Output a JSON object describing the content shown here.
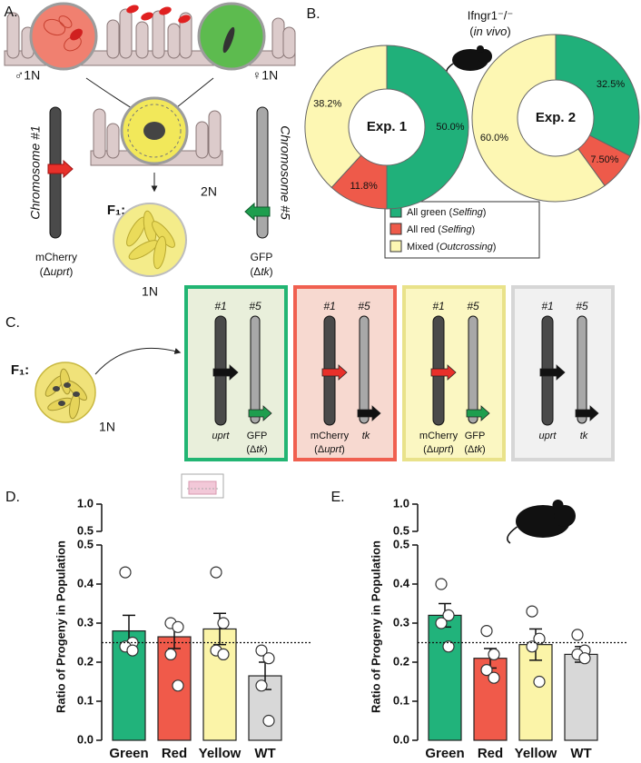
{
  "panel_a": {
    "label": "A.",
    "male": "♂1N",
    "female": "♀1N",
    "zygote": "2N",
    "chromosome_1": "Chromosome #1",
    "chromosome_5": "Chromosome #5",
    "marker_1": [
      "mCherry",
      "(Δuprt)"
    ],
    "marker_5": [
      "GFP",
      "(Δtk)"
    ],
    "f1": "F₁:",
    "f1_ploidy": "1N"
  },
  "panel_b": {
    "label": "B.",
    "title": "Ifngr1⁻/⁻",
    "subtitle": "(in vivo)",
    "legend": [
      {
        "name": "All green (Selfing)",
        "color": "#20b07a"
      },
      {
        "name": "All red (Selfing)",
        "color": "#ee5a4a"
      },
      {
        "name": "Mixed (Outcrossing)",
        "color": "#fdf7b3"
      }
    ]
  },
  "panel_c": {
    "label": "C.",
    "f1": "F₁:",
    "ploidy": "1N",
    "boxes": [
      {
        "border": "#22b573",
        "fill": "#e9efdb",
        "chromosomes": [
          "#1",
          "#5"
        ],
        "left_marker": "#111111",
        "right_marker": "#1e9e4e",
        "left_label": [
          "uprt"
        ],
        "right_label": [
          "GFP",
          "(Δtk)"
        ]
      },
      {
        "border": "#f06050",
        "fill": "#f7d9d0",
        "chromosomes": [
          "#1",
          "#5"
        ],
        "left_marker": "#e8302a",
        "right_marker": "#111111",
        "left_label": [
          "mCherry",
          "(Δuprt)"
        ],
        "right_label": [
          "tk"
        ]
      },
      {
        "border": "#e9e28a",
        "fill": "#fbf7c2",
        "chromosomes": [
          "#1",
          "#5"
        ],
        "left_marker": "#e8302a",
        "right_marker": "#1e9e4e",
        "left_label": [
          "mCherry",
          "(Δuprt)"
        ],
        "right_label": [
          "GFP",
          "(Δtk)"
        ]
      },
      {
        "border": "#d6d6d6",
        "fill": "#f1f1f1",
        "chromosomes": [
          "#1",
          "#5"
        ],
        "left_marker": "#111111",
        "right_marker": "#111111",
        "left_label": [
          "uprt"
        ],
        "right_label": [
          "tk"
        ]
      }
    ]
  },
  "chart_data": [
    {
      "type": "pie",
      "label": "Exp. 1",
      "values": [
        50.0,
        11.8,
        38.2
      ],
      "value_labels": [
        "50.0%",
        "11.8%",
        "38.2%"
      ]
    },
    {
      "type": "pie",
      "label": "Exp. 2",
      "values": [
        32.5,
        7.5,
        60.0
      ],
      "value_labels": [
        "32.5%",
        "7.50%",
        "60.0%"
      ]
    },
    {
      "type": "bar",
      "label": "D.",
      "y_label": "Ratio of Progeny in Population",
      "categories": [
        "Green",
        "Red",
        "Yellow",
        "WT"
      ],
      "colors": [
        "#21b37b",
        "#f05a4a",
        "#fbf4a8",
        "#d8d8d8"
      ],
      "values": [
        0.28,
        0.265,
        0.285,
        0.165
      ],
      "errors": [
        0.04,
        0.03,
        0.04,
        0.035
      ],
      "points": [
        [
          0.43,
          0.25,
          0.24,
          0.23
        ],
        [
          0.3,
          0.29,
          0.22,
          0.14
        ],
        [
          0.43,
          0.3,
          0.23,
          0.22
        ],
        [
          0.23,
          0.21,
          0.14,
          0.05
        ]
      ],
      "reference_line": 0.25,
      "ylim": [
        0,
        0.5
      ],
      "yticks": [
        {
          "value": 0,
          "label": "0.0"
        },
        0.1,
        0.2,
        0.3,
        0.4,
        0.5
      ],
      "ylim_top": [
        0.5,
        1
      ],
      "yticks_top": [
        0.5,
        {
          "value": 1,
          "label": "1.0"
        }
      ]
    },
    {
      "type": "bar",
      "label": "E.",
      "y_label": "Ratio of Progeny in Population",
      "categories": [
        "Green",
        "Red",
        "Yellow",
        "WT"
      ],
      "colors": [
        "#21b37b",
        "#f05a4a",
        "#fbf4a8",
        "#d8d8d8"
      ],
      "values": [
        0.32,
        0.21,
        0.245,
        0.22
      ],
      "errors": [
        0.03,
        0.025,
        0.04,
        0.02
      ],
      "points": [
        [
          0.4,
          0.32,
          0.3,
          0.24
        ],
        [
          0.28,
          0.22,
          0.18,
          0.16
        ],
        [
          0.33,
          0.26,
          0.24,
          0.15
        ],
        [
          0.27,
          0.23,
          0.22,
          0.21
        ]
      ],
      "reference_line": 0.25,
      "ylim": [
        0,
        0.5
      ],
      "yticks": [
        {
          "value": 0,
          "label": "0.0"
        },
        0.1,
        0.2,
        0.3,
        0.4,
        0.5
      ],
      "ylim_top": [
        0.5,
        1
      ],
      "yticks_top": [
        0.5,
        {
          "value": 1,
          "label": "1.0"
        }
      ]
    }
  ]
}
